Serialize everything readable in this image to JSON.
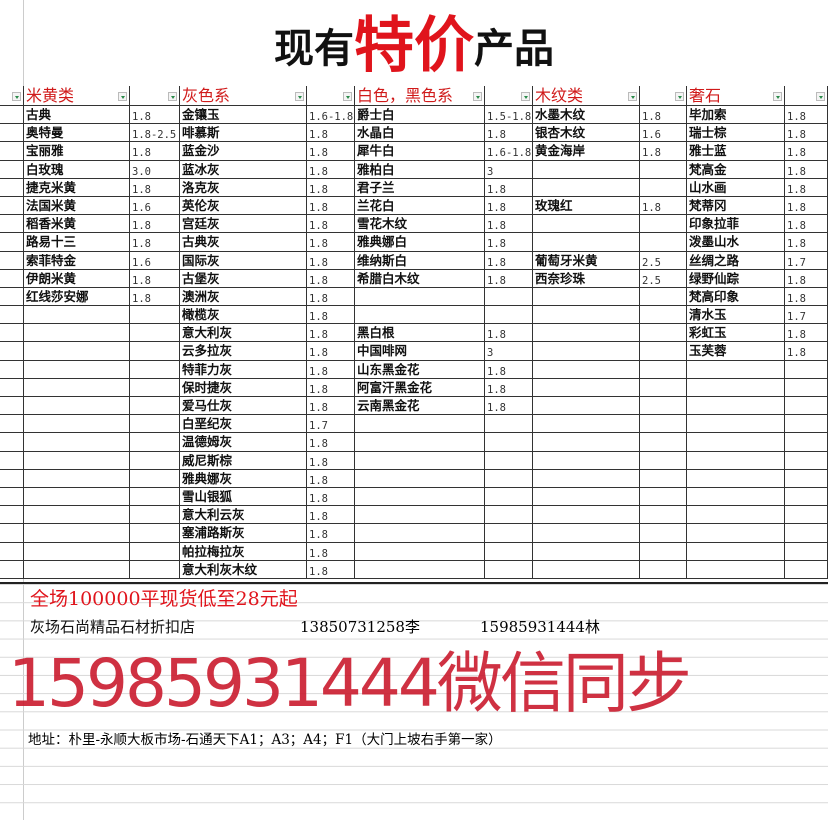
{
  "title": {
    "part1": "现有",
    "highlight": "特价",
    "part2": "产品"
  },
  "colors": {
    "accent_red": "#e0141c",
    "header_red": "#d01a1a",
    "watermark": "#c81428"
  },
  "columns": [
    {
      "header": "米黄类",
      "items": [
        [
          "古典",
          "1.8"
        ],
        [
          "奥特曼",
          "1.8-2.5"
        ],
        [
          "宝丽雅",
          "1.8"
        ],
        [
          "白玫瑰",
          "3.0"
        ],
        [
          "捷克米黄",
          "1.8"
        ],
        [
          "法国米黄",
          "1.6"
        ],
        [
          "稻香米黄",
          "1.8"
        ],
        [
          "路易十三",
          "1.8"
        ],
        [
          "索菲特金",
          "1.6"
        ],
        [
          "伊朗米黄",
          "1.8"
        ],
        [
          "红线莎安娜",
          "1.8"
        ]
      ]
    },
    {
      "header": "灰色系",
      "items": [
        [
          "金镶玉",
          "1.6-1.8"
        ],
        [
          "啡慕斯",
          "1.8"
        ],
        [
          "蓝金沙",
          "1.8"
        ],
        [
          "蓝冰灰",
          "1.8"
        ],
        [
          "洛克灰",
          "1.8"
        ],
        [
          "英伦灰",
          "1.8"
        ],
        [
          "宫廷灰",
          "1.8"
        ],
        [
          "古典灰",
          "1.8"
        ],
        [
          "国际灰",
          "1.8"
        ],
        [
          "古堡灰",
          "1.8"
        ],
        [
          "澳洲灰",
          "1.8"
        ],
        [
          "橄榄灰",
          "1.8"
        ],
        [
          "意大利灰",
          "1.8"
        ],
        [
          "云多拉灰",
          "1.8"
        ],
        [
          "特菲力灰",
          "1.8"
        ],
        [
          "保时捷灰",
          "1.8"
        ],
        [
          "爱马仕灰",
          "1.8"
        ],
        [
          "白垩纪灰",
          "1.7"
        ],
        [
          "温德姆灰",
          "1.8"
        ],
        [
          "威尼斯棕",
          "1.8"
        ],
        [
          "雅典娜灰",
          "1.8"
        ],
        [
          "雪山银狐",
          "1.8"
        ],
        [
          "意大利云灰",
          "1.8"
        ],
        [
          "塞浦路斯灰",
          "1.8"
        ],
        [
          "帕拉梅拉灰",
          "1.8"
        ],
        [
          "意大利灰木纹",
          "1.8"
        ]
      ]
    },
    {
      "header": "白色，黑色系",
      "items": [
        [
          "爵士白",
          "1.5-1.8"
        ],
        [
          "水晶白",
          "1.8"
        ],
        [
          "犀牛白",
          "1.6-1.8"
        ],
        [
          "雅柏白",
          "3"
        ],
        [
          "君子兰",
          "1.8"
        ],
        [
          "兰花白",
          "1.8"
        ],
        [
          "雪花木纹",
          "1.8"
        ],
        [
          "雅典娜白",
          "1.8"
        ],
        [
          "维纳斯白",
          "1.8"
        ],
        [
          "希腊白木纹",
          "1.8"
        ],
        [
          "",
          ""
        ],
        [
          "",
          ""
        ],
        [
          "黑白根",
          "1.8"
        ],
        [
          "中国啡网",
          "3"
        ],
        [
          "山东黑金花",
          "1.8"
        ],
        [
          "阿富汗黑金花",
          "1.8"
        ],
        [
          "云南黑金花",
          "1.8"
        ]
      ]
    },
    {
      "header": "木纹类",
      "items": [
        [
          "水墨木纹",
          "1.8"
        ],
        [
          "银杏木纹",
          "1.6"
        ],
        [
          "黄金海岸",
          "1.8"
        ],
        [
          "",
          ""
        ],
        [
          "",
          ""
        ],
        [
          "玫瑰红",
          "1.8"
        ],
        [
          "",
          ""
        ],
        [
          "",
          ""
        ],
        [
          "葡萄牙米黄",
          "2.5"
        ],
        [
          "西奈珍珠",
          "2.5"
        ]
      ]
    },
    {
      "header": "奢石",
      "items": [
        [
          "毕加索",
          "1.8"
        ],
        [
          "瑞士棕",
          "1.8"
        ],
        [
          "雅士蓝",
          "1.8"
        ],
        [
          "梵高金",
          "1.8"
        ],
        [
          "山水画",
          "1.8"
        ],
        [
          "梵蒂冈",
          "1.8"
        ],
        [
          "印象拉菲",
          "1.8"
        ],
        [
          "泼墨山水",
          "1.8"
        ],
        [
          "丝绸之路",
          "1.7"
        ],
        [
          "绿野仙踪",
          "1.8"
        ],
        [
          "梵高印象",
          "1.8"
        ],
        [
          "清水玉",
          "1.7"
        ],
        [
          "彩虹玉",
          "1.8"
        ],
        [
          "玉芙蓉",
          "1.8"
        ]
      ]
    }
  ],
  "footer": {
    "promo": "全场100000平现货低至28元起",
    "shop": "灰场石尚精品石材折扣店",
    "phone1": "13850731258李",
    "phone2": "15985931444林",
    "address": "地址：朴里-永顺大板市场-石通天下A1；A3；A4；F1（大门上坡右手第一家）",
    "watermark": "15985931444微信同步"
  }
}
